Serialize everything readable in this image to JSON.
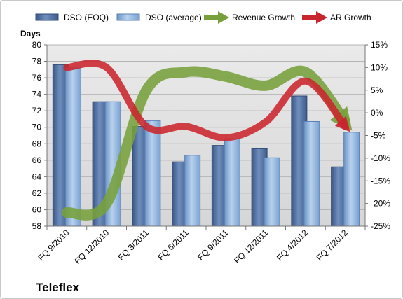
{
  "chart_data": {
    "type": "bar",
    "title": "",
    "corner_label": "Teleflex",
    "ylabel_left": "Days",
    "ylabel_right": "",
    "xlabel": "",
    "categories": [
      "FQ 9/2010",
      "FQ 12/2010",
      "FQ 3/2011",
      "FQ 6/2011",
      "FQ 9/2011",
      "FQ 12/2011",
      "FQ 4/2012",
      "FQ 7/2012"
    ],
    "ylim_left": [
      58,
      80
    ],
    "ylim_right": [
      -25,
      15
    ],
    "left_ticks": [
      "58",
      "60",
      "62",
      "64",
      "66",
      "68",
      "70",
      "72",
      "74",
      "76",
      "78",
      "80"
    ],
    "right_ticks": [
      "-25%",
      "-20%",
      "-15%",
      "-10%",
      "-5%",
      "0%",
      "5%",
      "10%",
      "15%"
    ],
    "grid": true,
    "legend_position": "top",
    "series": [
      {
        "name": "DSO (EOQ)",
        "kind": "bar",
        "axis": "left",
        "color": "#4f6f9f",
        "values": [
          77.6,
          73.1,
          70.1,
          65.8,
          67.8,
          67.4,
          73.8,
          65.2
        ]
      },
      {
        "name": "DSO (average)",
        "kind": "bar",
        "axis": "left",
        "color": "#8fb3dd",
        "values": [
          77.2,
          73.1,
          70.8,
          66.6,
          68.6,
          66.3,
          70.7,
          69.4
        ]
      },
      {
        "name": "Revenue Growth",
        "kind": "line",
        "axis": "right",
        "color": "#77a03b",
        "values": [
          -22,
          -20,
          5,
          9,
          8,
          6,
          9,
          -2
        ]
      },
      {
        "name": "AR Growth",
        "kind": "line",
        "axis": "right",
        "color": "#c9252c",
        "values": [
          10,
          10,
          -3,
          -3,
          -5.5,
          -2,
          7,
          -3
        ]
      }
    ]
  }
}
